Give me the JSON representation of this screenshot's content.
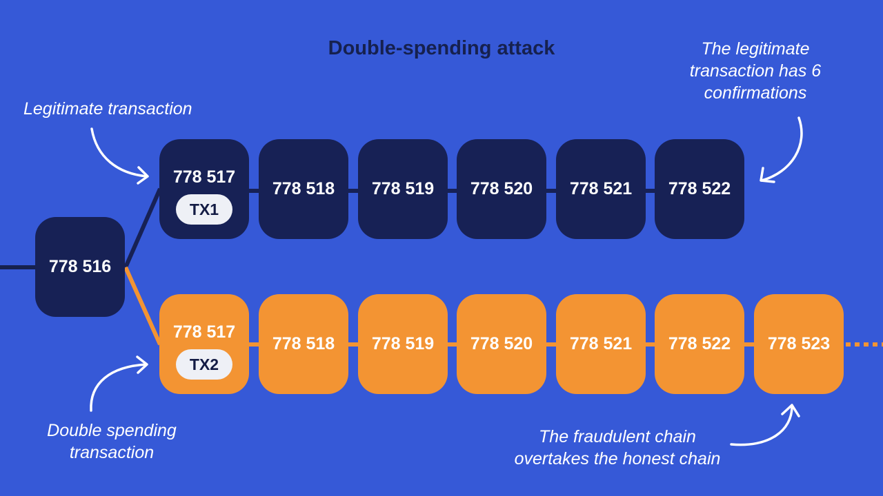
{
  "title": "Double-spending attack",
  "genesis_block": {
    "label": "778 516"
  },
  "honest_chain": {
    "color": "#172155",
    "blocks": [
      "778 517",
      "778 518",
      "778 519",
      "778 520",
      "778 521",
      "778 522"
    ],
    "tx_label": "TX1"
  },
  "fraud_chain": {
    "color": "#f39433",
    "blocks": [
      "778 517",
      "778 518",
      "778 519",
      "778 520",
      "778 521",
      "778 522",
      "778 523"
    ],
    "tx_label": "TX2"
  },
  "annotations": {
    "legitimate_tx": "Legitimate transaction",
    "confirmations": [
      "The legitimate",
      "transaction has 6",
      "confirmations"
    ],
    "double_spend": [
      "Double spending",
      "transaction"
    ],
    "overtake": [
      "The fraudulent chain",
      "overtakes the honest chain"
    ]
  },
  "colors": {
    "background": "#3659d7",
    "title": "#16214f",
    "annotation": "#ffffff"
  }
}
